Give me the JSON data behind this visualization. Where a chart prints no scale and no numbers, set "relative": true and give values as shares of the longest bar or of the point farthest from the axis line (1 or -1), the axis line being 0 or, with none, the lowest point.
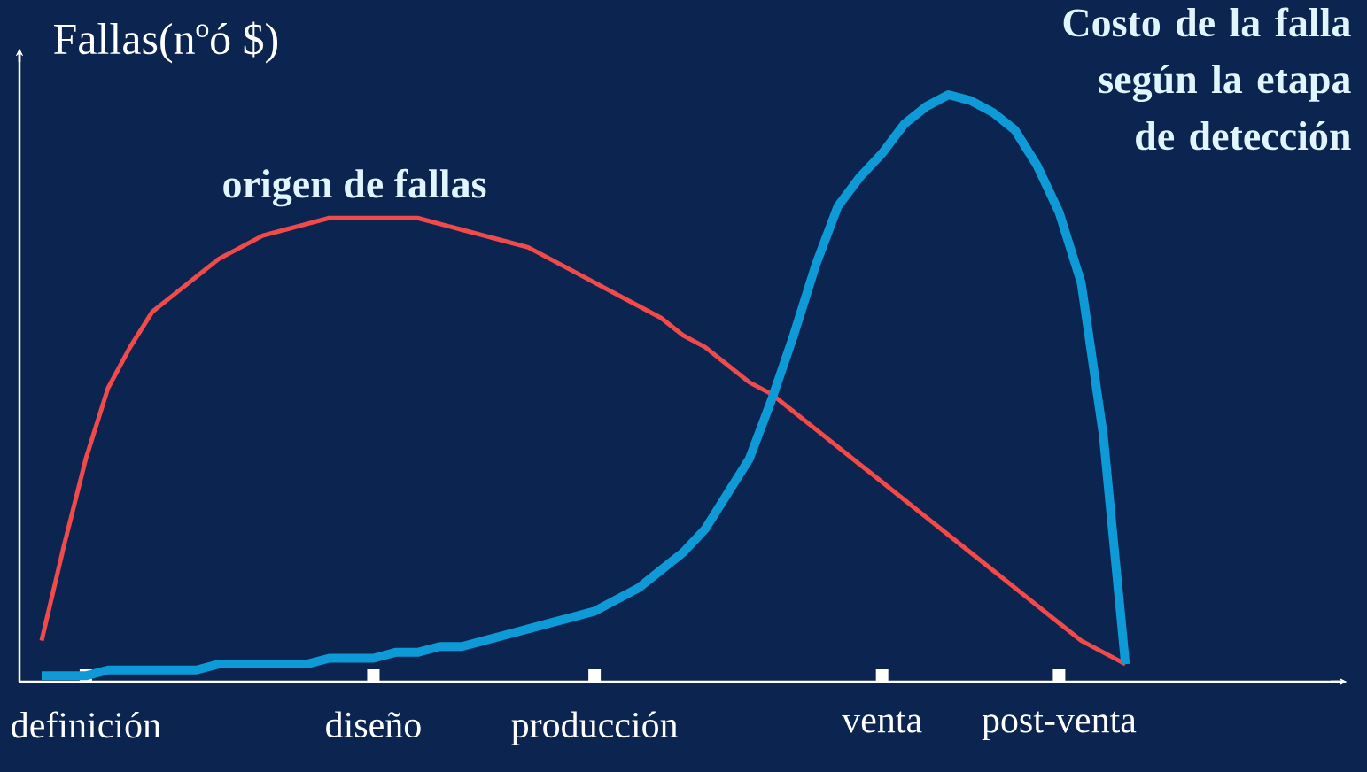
{
  "chart_data": {
    "type": "line",
    "relative": true,
    "ylabel": "Fallas(nºó $)",
    "legend": false,
    "marker": "none",
    "line_style": "solid",
    "grid": false,
    "categories": [
      null,
      null,
      null,
      "definición",
      null,
      null,
      null,
      null,
      null,
      null,
      null,
      null,
      null,
      null,
      null,
      null,
      "diseño",
      null,
      null,
      null,
      null,
      null,
      null,
      null,
      null,
      null,
      "producción",
      null,
      null,
      null,
      null,
      null,
      null,
      null,
      null,
      null,
      null,
      null,
      null,
      "venta",
      null,
      null,
      null,
      null,
      null,
      null,
      null,
      "post-venta",
      null,
      null,
      null,
      null,
      null,
      null,
      null,
      null,
      null,
      null,
      null,
      null,
      null
    ],
    "series": [
      {
        "name": "origen de fallas",
        "color": "#f04a4a",
        "values": [
          null,
          0.07,
          0.23,
          0.38,
          0.5,
          0.57,
          0.63,
          0.66,
          0.69,
          0.72,
          0.74,
          0.76,
          0.77,
          0.78,
          0.79,
          0.79,
          0.79,
          0.79,
          0.79,
          0.78,
          0.77,
          0.76,
          0.75,
          0.74,
          0.72,
          0.7,
          0.68,
          0.66,
          0.64,
          0.62,
          0.59,
          0.57,
          0.54,
          0.51,
          0.49,
          0.46,
          0.43,
          0.4,
          0.37,
          0.34,
          0.31,
          0.28,
          0.25,
          0.22,
          0.19,
          0.16,
          0.13,
          0.1,
          0.07,
          0.05,
          0.03,
          null,
          null,
          null,
          null,
          null,
          null,
          null,
          null,
          null,
          null
        ]
      },
      {
        "name": "Costo de la falla según la etapa de detección",
        "color": "#0e9ad6",
        "values": [
          null,
          0.01,
          0.01,
          0.01,
          0.02,
          0.02,
          0.02,
          0.02,
          0.02,
          0.03,
          0.03,
          0.03,
          0.03,
          0.03,
          0.04,
          0.04,
          0.04,
          0.05,
          0.05,
          0.06,
          0.06,
          0.07,
          0.08,
          0.09,
          0.1,
          0.11,
          0.12,
          0.14,
          0.16,
          0.19,
          0.22,
          0.26,
          0.32,
          0.38,
          0.48,
          0.59,
          0.71,
          0.81,
          0.86,
          0.9,
          0.95,
          0.98,
          1,
          0.99,
          0.97,
          0.94,
          0.88,
          0.8,
          0.68,
          0.42,
          0.03,
          null,
          null,
          null,
          null,
          null,
          null,
          null,
          null,
          null,
          null
        ]
      }
    ]
  }
}
